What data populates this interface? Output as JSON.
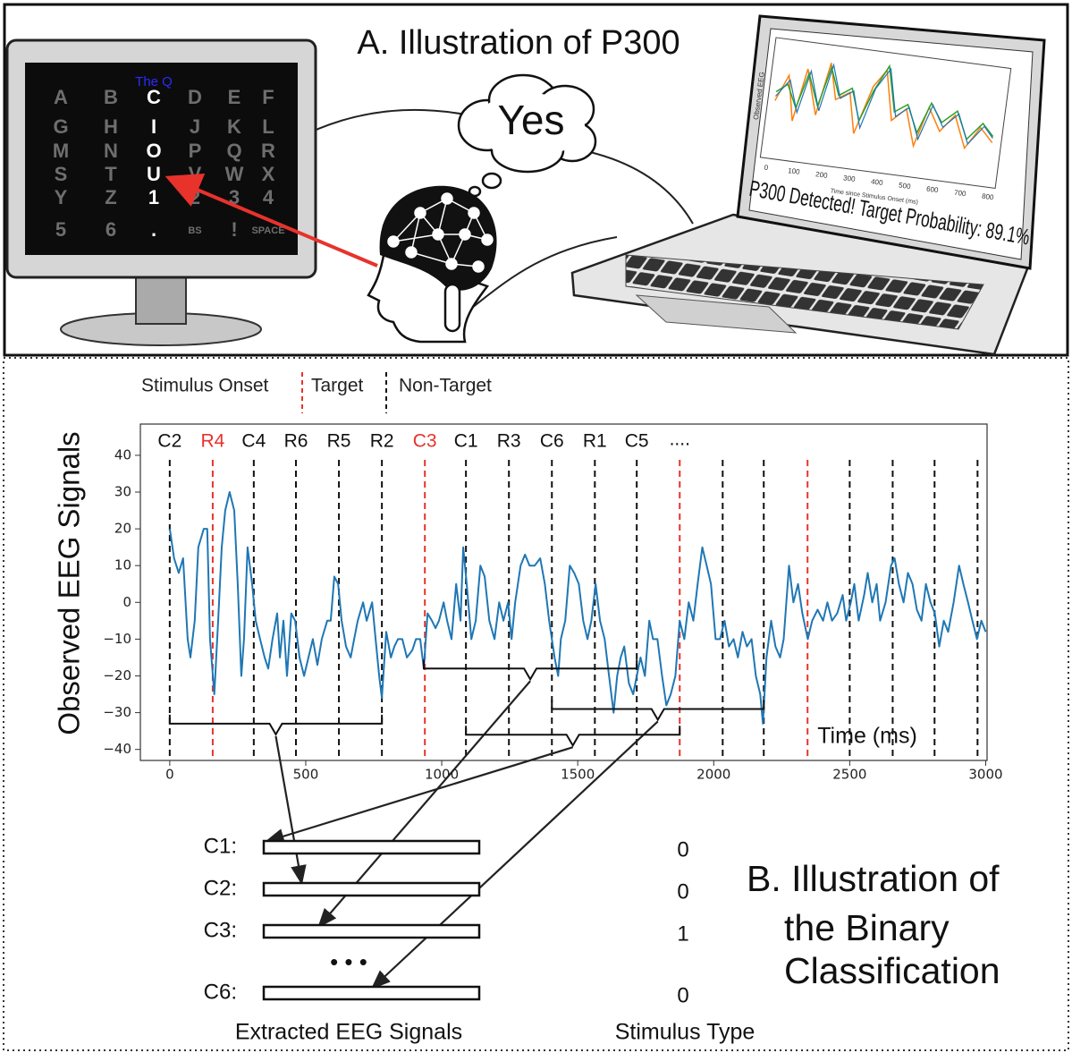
{
  "panel_a": {
    "title": "A. Illustration of P300",
    "thought": "Yes",
    "speller": {
      "title": "The Q",
      "columns": [
        [
          "A",
          "G",
          "M",
          "S",
          "Y",
          "5"
        ],
        [
          "B",
          "H",
          "N",
          "T",
          "Z",
          "6"
        ],
        [
          "C",
          "I",
          "O",
          "U",
          "1",
          "."
        ],
        [
          "D",
          "J",
          "P",
          "V",
          "2",
          "BS"
        ],
        [
          "E",
          "K",
          "Q",
          "W",
          "3",
          "!"
        ],
        [
          "F",
          "L",
          "R",
          "X",
          "4",
          "SPACE"
        ]
      ],
      "highlighted_column": 2
    },
    "laptop": {
      "y_label": "Observed EEG",
      "x_label": "Time since Stimulus Onset (ms)",
      "xticks": [
        0,
        100,
        200,
        300,
        400,
        500,
        600,
        700,
        800
      ],
      "status": "P300 Detected! Target Probability: 89.1%"
    }
  },
  "panel_b": {
    "legend": {
      "onset": "Stimulus Onset",
      "target": "Target",
      "non_target": "Non-Target"
    },
    "target_color": "#e8322c",
    "chart": {
      "type": "line",
      "y_label": "Observed EEG Signals",
      "x_label": "Time (ms)",
      "xlim": [
        -108,
        3005
      ],
      "ylim": [
        -43,
        48.5
      ],
      "xticks": [
        0,
        500,
        1000,
        1500,
        2000,
        2500,
        3000
      ],
      "yticks": [
        {
          "value": -40,
          "label": "−40"
        },
        {
          "value": -30,
          "label": "−30"
        },
        {
          "value": -20,
          "label": "−20"
        },
        {
          "value": -10,
          "label": "−10"
        },
        0,
        10,
        20,
        30,
        40
      ],
      "color": "#1f77b4",
      "x": [
        0,
        16,
        33,
        49,
        66,
        76,
        92,
        105,
        125,
        138,
        148,
        164,
        178,
        191,
        204,
        220,
        237,
        250,
        263,
        273,
        286,
        303,
        316,
        332,
        349,
        362,
        378,
        395,
        405,
        418,
        431,
        447,
        461,
        477,
        494,
        510,
        526,
        543,
        559,
        579,
        592,
        605,
        619,
        632,
        648,
        665,
        678,
        691,
        711,
        724,
        744,
        757,
        770,
        780,
        796,
        813,
        826,
        839,
        855,
        872,
        892,
        905,
        921,
        934,
        948,
        964,
        977,
        990,
        1007,
        1020,
        1036,
        1053,
        1069,
        1079,
        1092,
        1109,
        1125,
        1142,
        1158,
        1175,
        1194,
        1211,
        1227,
        1244,
        1257,
        1270,
        1290,
        1306,
        1323,
        1342,
        1362,
        1379,
        1395,
        1415,
        1428,
        1438,
        1454,
        1471,
        1487,
        1504,
        1520,
        1536,
        1550,
        1566,
        1582,
        1599,
        1615,
        1632,
        1645,
        1658,
        1671,
        1688,
        1704,
        1717,
        1731,
        1747,
        1763,
        1777,
        1793,
        1810,
        1826,
        1842,
        1859,
        1875,
        1892,
        1908,
        1925,
        1941,
        1958,
        1974,
        1990,
        2007,
        2023,
        2040,
        2056,
        2073,
        2089,
        2106,
        2122,
        2139,
        2155,
        2171,
        2181,
        2194,
        2211,
        2227,
        2244,
        2257,
        2277,
        2293,
        2310,
        2326,
        2346,
        2362,
        2382,
        2402,
        2418,
        2435,
        2454,
        2474,
        2487,
        2504,
        2517,
        2533,
        2553,
        2566,
        2583,
        2599,
        2612,
        2632,
        2652,
        2665,
        2681,
        2698,
        2714,
        2731,
        2747,
        2764,
        2780,
        2797,
        2813,
        2829,
        2846,
        2862,
        2882,
        2902,
        2918,
        2935,
        2951,
        2968,
        2984,
        3000
      ],
      "values": [
        20,
        12,
        8,
        12,
        -10,
        -15,
        -5,
        15,
        20,
        20,
        -10,
        -25,
        -5,
        15,
        25,
        30,
        25,
        5,
        -20,
        -10,
        15,
        5,
        -5,
        -10,
        -15,
        -18,
        -10,
        -3,
        -15,
        -5,
        -20,
        -3,
        -5,
        -15,
        -20,
        -15,
        -10,
        -17,
        -10,
        -5,
        -5,
        7,
        5,
        -5,
        -12,
        -15,
        -10,
        -5,
        0,
        -5,
        0,
        -10,
        -20,
        -26,
        -8,
        -15,
        -12,
        -10,
        -10,
        -15,
        -13,
        -10,
        -10,
        -18,
        -3,
        -5,
        -7,
        -5,
        0,
        -5,
        -10,
        5,
        -5,
        15,
        5,
        -10,
        -5,
        10,
        7,
        -5,
        -10,
        0,
        -5,
        0,
        -10,
        0,
        10,
        13,
        10,
        10,
        12,
        5,
        -5,
        -15,
        -20,
        -10,
        -5,
        10,
        8,
        5,
        -5,
        -10,
        -5,
        5,
        -5,
        -10,
        -20,
        -30,
        -20,
        -15,
        -12,
        -22,
        -25,
        -20,
        -15,
        -20,
        -5,
        -10,
        -10,
        -20,
        -28,
        -25,
        -20,
        -5,
        -10,
        0,
        -5,
        5,
        15,
        10,
        5,
        -10,
        -10,
        -5,
        -12,
        -10,
        -15,
        -8,
        -12,
        -10,
        -20,
        -25,
        -33,
        -15,
        -5,
        -12,
        -15,
        -10,
        10,
        0,
        5,
        -3,
        -10,
        -5,
        -2,
        -5,
        0,
        -5,
        -3,
        2,
        -5,
        0,
        5,
        -5,
        2,
        8,
        0,
        5,
        -5,
        0,
        10,
        12,
        5,
        0,
        8,
        5,
        -2,
        -5,
        5,
        0,
        -3,
        -12,
        -5,
        -8,
        0,
        10,
        5,
        0,
        -5,
        -10,
        -5,
        -8
      ],
      "stimuli": {
        "onsets": [
          0,
          158,
          309,
          464,
          622,
          780,
          938,
          1089,
          1247,
          1405,
          1563,
          1717,
          1875,
          2033,
          2184,
          2345,
          2500,
          2658,
          2812,
          2970
        ],
        "targets": [
          false,
          true,
          false,
          false,
          false,
          false,
          true,
          false,
          false,
          false,
          false,
          false,
          true,
          false,
          false,
          true,
          false,
          false,
          false,
          false
        ],
        "labels": [
          "C2",
          "R4",
          "C4",
          "R6",
          "R5",
          "R2",
          "C3",
          "C1",
          "R3",
          "C6",
          "R1",
          "C5"
        ],
        "more": "...."
      },
      "epochs": [
        {
          "start": 0,
          "end": 780,
          "level": -33
        },
        {
          "start": 934,
          "end": 1717,
          "level": -18
        },
        {
          "start": 1405,
          "end": 2184,
          "level": -29
        },
        {
          "start": 1089,
          "end": 1875,
          "level": -36
        }
      ]
    },
    "extraction": {
      "rows": [
        {
          "label": "C1:",
          "type": 0
        },
        {
          "label": "C2:",
          "type": 0
        },
        {
          "label": "C3:",
          "type": 1
        },
        {
          "label": "C6:",
          "type": 0
        }
      ],
      "ellipsis": "• • •",
      "signals_caption": "Extracted EEG Signals",
      "type_caption": "Stimulus Type"
    },
    "title_lines": [
      "B. Illustration of",
      "the Binary",
      "Classification"
    ]
  }
}
